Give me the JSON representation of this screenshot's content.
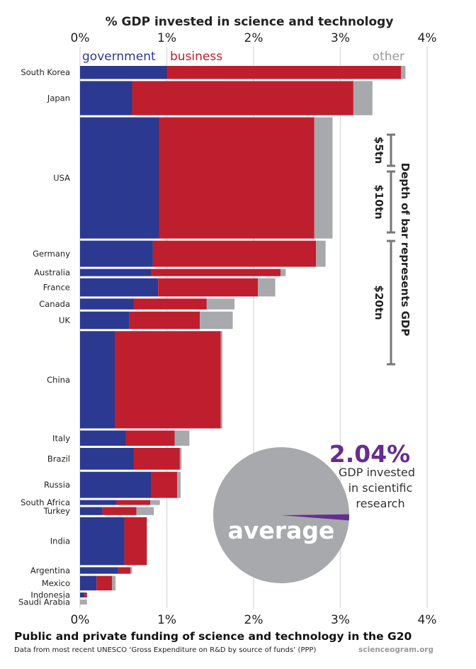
{
  "chart_data": {
    "type": "bar",
    "orientation": "horizontal",
    "stacked": true,
    "title": "% GDP invested in science and technology",
    "footer_title": "Public and private funding of science and technology in the G20",
    "footer_subtitle": "Data from most recent UNESCO ‘Gross Expenditure on R&D by source of funds’ (PPP)",
    "credit": "scienceogram.org",
    "x_ticks": [
      "0%",
      "1%",
      "2%",
      "3%",
      "4%"
    ],
    "xlim": [
      0,
      4
    ],
    "grid": true,
    "series": [
      {
        "name": "government",
        "color": "#2b3990"
      },
      {
        "name": "business",
        "color": "#be1e2d"
      },
      {
        "name": "other",
        "color": "#a7a9ac"
      }
    ],
    "categories": [
      "South Korea",
      "Japan",
      "USA",
      "Germany",
      "Australia",
      "France",
      "Canada",
      "UK",
      "China",
      "Italy",
      "Brazil",
      "Russia",
      "South Africa",
      "Turkey",
      "India",
      "Argentina",
      "Mexico",
      "Indonesia",
      "Saudi Arabia"
    ],
    "values": {
      "government": [
        1.0,
        0.6,
        0.91,
        0.84,
        0.82,
        0.9,
        0.62,
        0.57,
        0.4,
        0.53,
        0.62,
        0.82,
        0.42,
        0.26,
        0.51,
        0.44,
        0.19,
        0.05,
        0.0
      ],
      "business": [
        2.7,
        2.55,
        1.79,
        1.88,
        1.49,
        1.15,
        0.84,
        0.81,
        1.22,
        0.56,
        0.53,
        0.3,
        0.39,
        0.39,
        0.26,
        0.14,
        0.18,
        0.03,
        0.0
      ],
      "other": [
        0.05,
        0.22,
        0.21,
        0.11,
        0.06,
        0.2,
        0.32,
        0.38,
        0.02,
        0.17,
        0.02,
        0.04,
        0.11,
        0.2,
        0.0,
        0.02,
        0.04,
        0.0,
        0.08
      ]
    },
    "gdp_trillion_usd": [
      1.8,
      4.7,
      16.7,
      3.6,
      1.0,
      2.5,
      1.5,
      2.4,
      13.4,
      2.1,
      3.0,
      3.6,
      0.6,
      1.1,
      6.6,
      0.9,
      2.0,
      0.5,
      0.4
    ],
    "gdp_scale_legend": {
      "title": "Depth of bar represents GDP",
      "labels": [
        "$5tn",
        "$10tn",
        "$20tn"
      ]
    },
    "average": {
      "value_label": "2.04%",
      "value": 2.04,
      "caption": [
        "GDP invested",
        "in scientific",
        "research"
      ],
      "word": "average",
      "pie_color": "#a7a9ac",
      "slice_color": "#662d91"
    }
  }
}
